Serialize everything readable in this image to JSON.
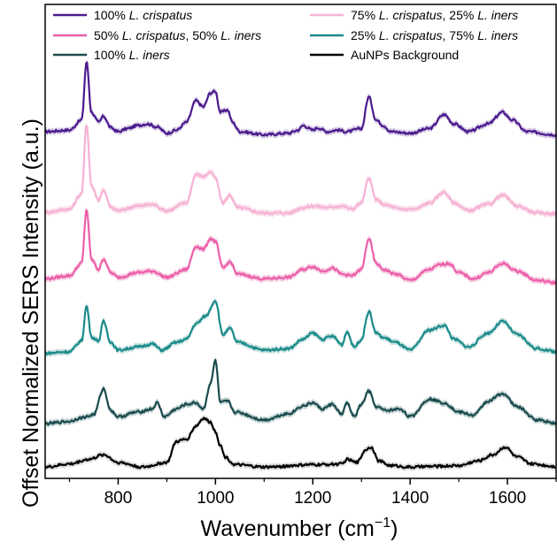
{
  "chart_data": {
    "type": "line",
    "title": "",
    "xlabel": "Wavenumber (cm",
    "xlabel_sup": "−1",
    "xlabel_close": ")",
    "ylabel": "Offset Normalized SERS Intensity (a.u.)",
    "xlim": [
      650,
      1700
    ],
    "xticks": [
      800,
      1000,
      1200,
      1400,
      1600
    ],
    "y_ticks_labeled": false,
    "grid": false,
    "legend_position": "top",
    "legend": [
      {
        "key": "s1",
        "parts": [
          {
            "t": "100% ",
            "i": false
          },
          {
            "t": "L. crispatus",
            "i": true
          }
        ]
      },
      {
        "key": "s2",
        "parts": [
          {
            "t": "75% ",
            "i": false
          },
          {
            "t": "L. crispatus",
            "i": true
          },
          {
            "t": ", 25% ",
            "i": false
          },
          {
            "t": "L. iners",
            "i": true
          }
        ]
      },
      {
        "key": "s3",
        "parts": [
          {
            "t": "50% ",
            "i": false
          },
          {
            "t": "L. crispatus",
            "i": true
          },
          {
            "t": ", 50% ",
            "i": false
          },
          {
            "t": "L. iners",
            "i": true
          }
        ]
      },
      {
        "key": "s4",
        "parts": [
          {
            "t": "25% ",
            "i": false
          },
          {
            "t": "L. crispatus",
            "i": true
          },
          {
            "t": ", 75% ",
            "i": false
          },
          {
            "t": "L. iners",
            "i": true
          }
        ]
      },
      {
        "key": "s5",
        "parts": [
          {
            "t": "100% ",
            "i": false
          },
          {
            "t": "L. iners",
            "i": true
          }
        ]
      },
      {
        "key": "s6",
        "parts": [
          {
            "t": "AuNPs Background",
            "i": false
          }
        ]
      }
    ],
    "series": [
      {
        "key": "s1",
        "color": "#4b1a8e",
        "band": "#c9bcdc",
        "offset": 4.25,
        "points": [
          [
            650,
            0.1
          ],
          [
            700,
            0.12
          ],
          [
            725,
            0.25
          ],
          [
            735,
            1.0
          ],
          [
            745,
            0.35
          ],
          [
            760,
            0.22
          ],
          [
            770,
            0.3
          ],
          [
            785,
            0.15
          ],
          [
            800,
            0.1
          ],
          [
            820,
            0.14
          ],
          [
            840,
            0.18
          ],
          [
            860,
            0.2
          ],
          [
            880,
            0.16
          ],
          [
            900,
            0.08
          ],
          [
            920,
            0.12
          ],
          [
            940,
            0.22
          ],
          [
            960,
            0.5
          ],
          [
            975,
            0.42
          ],
          [
            990,
            0.6
          ],
          [
            1000,
            0.62
          ],
          [
            1010,
            0.35
          ],
          [
            1025,
            0.38
          ],
          [
            1035,
            0.22
          ],
          [
            1050,
            0.1
          ],
          [
            1100,
            0.06
          ],
          [
            1150,
            0.08
          ],
          [
            1170,
            0.12
          ],
          [
            1180,
            0.18
          ],
          [
            1200,
            0.12
          ],
          [
            1210,
            0.15
          ],
          [
            1230,
            0.1
          ],
          [
            1250,
            0.12
          ],
          [
            1270,
            0.1
          ],
          [
            1300,
            0.14
          ],
          [
            1315,
            0.55
          ],
          [
            1330,
            0.25
          ],
          [
            1345,
            0.18
          ],
          [
            1360,
            0.1
          ],
          [
            1400,
            0.08
          ],
          [
            1440,
            0.14
          ],
          [
            1470,
            0.32
          ],
          [
            1490,
            0.2
          ],
          [
            1520,
            0.1
          ],
          [
            1560,
            0.2
          ],
          [
            1590,
            0.35
          ],
          [
            1610,
            0.25
          ],
          [
            1640,
            0.1
          ],
          [
            1700,
            0.06
          ]
        ]
      },
      {
        "key": "s2",
        "color": "#f6b2d4",
        "band": "#f9d6e8",
        "offset": 3.25,
        "points": [
          [
            650,
            0.06
          ],
          [
            700,
            0.1
          ],
          [
            725,
            0.3
          ],
          [
            735,
            1.2
          ],
          [
            745,
            0.4
          ],
          [
            760,
            0.22
          ],
          [
            770,
            0.35
          ],
          [
            785,
            0.12
          ],
          [
            800,
            0.08
          ],
          [
            840,
            0.14
          ],
          [
            870,
            0.16
          ],
          [
            900,
            0.08
          ],
          [
            940,
            0.18
          ],
          [
            960,
            0.55
          ],
          [
            975,
            0.52
          ],
          [
            990,
            0.58
          ],
          [
            1000,
            0.5
          ],
          [
            1015,
            0.18
          ],
          [
            1030,
            0.28
          ],
          [
            1045,
            0.12
          ],
          [
            1100,
            0.05
          ],
          [
            1150,
            0.05
          ],
          [
            1180,
            0.12
          ],
          [
            1200,
            0.14
          ],
          [
            1230,
            0.12
          ],
          [
            1260,
            0.14
          ],
          [
            1280,
            0.1
          ],
          [
            1300,
            0.18
          ],
          [
            1315,
            0.5
          ],
          [
            1330,
            0.22
          ],
          [
            1350,
            0.15
          ],
          [
            1380,
            0.1
          ],
          [
            1410,
            0.1
          ],
          [
            1440,
            0.18
          ],
          [
            1470,
            0.32
          ],
          [
            1490,
            0.18
          ],
          [
            1520,
            0.08
          ],
          [
            1560,
            0.16
          ],
          [
            1590,
            0.28
          ],
          [
            1620,
            0.14
          ],
          [
            1660,
            0.05
          ],
          [
            1700,
            0.04
          ]
        ]
      },
      {
        "key": "s3",
        "color": "#ec5fa9",
        "band": "#f5bcd9",
        "offset": 2.35,
        "points": [
          [
            650,
            0.1
          ],
          [
            700,
            0.14
          ],
          [
            725,
            0.3
          ],
          [
            735,
            1.0
          ],
          [
            745,
            0.35
          ],
          [
            760,
            0.22
          ],
          [
            770,
            0.36
          ],
          [
            785,
            0.18
          ],
          [
            800,
            0.12
          ],
          [
            840,
            0.18
          ],
          [
            870,
            0.2
          ],
          [
            900,
            0.12
          ],
          [
            940,
            0.22
          ],
          [
            960,
            0.52
          ],
          [
            975,
            0.48
          ],
          [
            990,
            0.62
          ],
          [
            1000,
            0.58
          ],
          [
            1015,
            0.24
          ],
          [
            1030,
            0.32
          ],
          [
            1045,
            0.16
          ],
          [
            1100,
            0.1
          ],
          [
            1150,
            0.12
          ],
          [
            1180,
            0.22
          ],
          [
            1200,
            0.26
          ],
          [
            1220,
            0.2
          ],
          [
            1240,
            0.24
          ],
          [
            1260,
            0.16
          ],
          [
            1280,
            0.14
          ],
          [
            1300,
            0.22
          ],
          [
            1315,
            0.62
          ],
          [
            1330,
            0.3
          ],
          [
            1345,
            0.22
          ],
          [
            1370,
            0.16
          ],
          [
            1400,
            0.08
          ],
          [
            1440,
            0.22
          ],
          [
            1460,
            0.28
          ],
          [
            1480,
            0.3
          ],
          [
            1500,
            0.18
          ],
          [
            1530,
            0.1
          ],
          [
            1560,
            0.18
          ],
          [
            1590,
            0.3
          ],
          [
            1620,
            0.2
          ],
          [
            1660,
            0.08
          ],
          [
            1700,
            0.05
          ]
        ]
      },
      {
        "key": "s4",
        "color": "#1a8c8a",
        "band": "#b6d7d6",
        "offset": 1.45,
        "points": [
          [
            650,
            0.04
          ],
          [
            700,
            0.06
          ],
          [
            725,
            0.2
          ],
          [
            735,
            0.65
          ],
          [
            745,
            0.25
          ],
          [
            760,
            0.2
          ],
          [
            770,
            0.45
          ],
          [
            785,
            0.18
          ],
          [
            800,
            0.08
          ],
          [
            840,
            0.12
          ],
          [
            870,
            0.16
          ],
          [
            890,
            0.08
          ],
          [
            920,
            0.18
          ],
          [
            940,
            0.22
          ],
          [
            960,
            0.42
          ],
          [
            980,
            0.52
          ],
          [
            1000,
            0.72
          ],
          [
            1015,
            0.28
          ],
          [
            1030,
            0.36
          ],
          [
            1045,
            0.18
          ],
          [
            1100,
            0.08
          ],
          [
            1150,
            0.1
          ],
          [
            1180,
            0.22
          ],
          [
            1200,
            0.3
          ],
          [
            1220,
            0.22
          ],
          [
            1240,
            0.26
          ],
          [
            1260,
            0.15
          ],
          [
            1270,
            0.32
          ],
          [
            1285,
            0.12
          ],
          [
            1300,
            0.22
          ],
          [
            1315,
            0.58
          ],
          [
            1330,
            0.3
          ],
          [
            1345,
            0.24
          ],
          [
            1370,
            0.18
          ],
          [
            1400,
            0.08
          ],
          [
            1440,
            0.34
          ],
          [
            1470,
            0.4
          ],
          [
            1490,
            0.22
          ],
          [
            1520,
            0.12
          ],
          [
            1560,
            0.3
          ],
          [
            1590,
            0.45
          ],
          [
            1620,
            0.28
          ],
          [
            1660,
            0.1
          ],
          [
            1700,
            0.06
          ]
        ]
      },
      {
        "key": "s5",
        "color": "#1b4b4e",
        "band": "#b0c4c4",
        "offset": 0.55,
        "points": [
          [
            650,
            0.03
          ],
          [
            700,
            0.06
          ],
          [
            720,
            0.1
          ],
          [
            735,
            0.12
          ],
          [
            750,
            0.15
          ],
          [
            770,
            0.48
          ],
          [
            785,
            0.2
          ],
          [
            800,
            0.12
          ],
          [
            840,
            0.18
          ],
          [
            870,
            0.22
          ],
          [
            880,
            0.3
          ],
          [
            895,
            0.12
          ],
          [
            920,
            0.22
          ],
          [
            940,
            0.28
          ],
          [
            960,
            0.3
          ],
          [
            975,
            0.22
          ],
          [
            990,
            0.55
          ],
          [
            1000,
            0.85
          ],
          [
            1010,
            0.3
          ],
          [
            1025,
            0.32
          ],
          [
            1040,
            0.18
          ],
          [
            1100,
            0.08
          ],
          [
            1150,
            0.16
          ],
          [
            1180,
            0.26
          ],
          [
            1200,
            0.3
          ],
          [
            1220,
            0.22
          ],
          [
            1240,
            0.28
          ],
          [
            1260,
            0.15
          ],
          [
            1270,
            0.3
          ],
          [
            1285,
            0.12
          ],
          [
            1300,
            0.28
          ],
          [
            1315,
            0.45
          ],
          [
            1330,
            0.25
          ],
          [
            1350,
            0.2
          ],
          [
            1380,
            0.22
          ],
          [
            1400,
            0.12
          ],
          [
            1440,
            0.35
          ],
          [
            1470,
            0.3
          ],
          [
            1500,
            0.18
          ],
          [
            1530,
            0.14
          ],
          [
            1560,
            0.32
          ],
          [
            1590,
            0.42
          ],
          [
            1620,
            0.25
          ],
          [
            1660,
            0.08
          ],
          [
            1700,
            0.04
          ]
        ]
      },
      {
        "key": "s6",
        "color": "#000000",
        "band": "#cfcfcf",
        "offset": 0.0,
        "points": [
          [
            650,
            0.02
          ],
          [
            700,
            0.06
          ],
          [
            740,
            0.12
          ],
          [
            770,
            0.18
          ],
          [
            800,
            0.08
          ],
          [
            850,
            0.02
          ],
          [
            900,
            0.08
          ],
          [
            920,
            0.35
          ],
          [
            940,
            0.38
          ],
          [
            960,
            0.55
          ],
          [
            975,
            0.65
          ],
          [
            990,
            0.6
          ],
          [
            1000,
            0.48
          ],
          [
            1010,
            0.3
          ],
          [
            1020,
            0.15
          ],
          [
            1040,
            0.05
          ],
          [
            1100,
            0.02
          ],
          [
            1200,
            0.05
          ],
          [
            1260,
            0.06
          ],
          [
            1270,
            0.12
          ],
          [
            1290,
            0.08
          ],
          [
            1310,
            0.25
          ],
          [
            1320,
            0.28
          ],
          [
            1335,
            0.1
          ],
          [
            1360,
            0.04
          ],
          [
            1400,
            0.02
          ],
          [
            1450,
            0.03
          ],
          [
            1500,
            0.04
          ],
          [
            1540,
            0.1
          ],
          [
            1570,
            0.18
          ],
          [
            1595,
            0.28
          ],
          [
            1620,
            0.15
          ],
          [
            1650,
            0.06
          ],
          [
            1700,
            0.03
          ]
        ]
      }
    ]
  }
}
